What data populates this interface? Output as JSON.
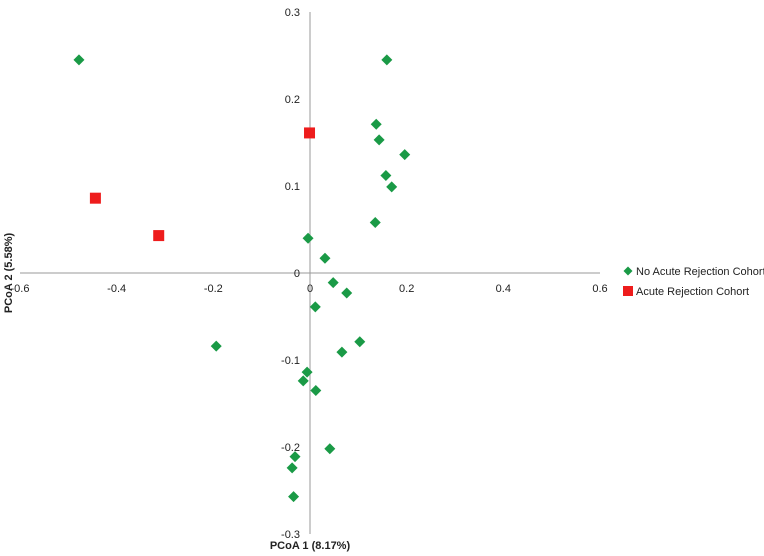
{
  "chart_data": {
    "type": "scatter",
    "title": "",
    "xlabel": "PCoA 1 (8.17%)",
    "ylabel": "PCoA 2 (5.58%)",
    "xlim": [
      -0.6,
      0.6
    ],
    "ylim": [
      -0.3,
      0.3
    ],
    "x_ticks": [
      "-0.6",
      "-0.4",
      "-0.2",
      "0",
      "0.2",
      "0.4",
      "0.6"
    ],
    "y_ticks": [
      "-0.3",
      "-0.2",
      "-0.1",
      "0",
      "0.1",
      "0.2",
      "0.3"
    ],
    "grid": false,
    "legend_position": "right",
    "series": [
      {
        "name": "No Acute Rejection Cohort",
        "marker": "diamond",
        "color": "#1a9a46",
        "points": [
          {
            "x": -0.478,
            "y": 0.245
          },
          {
            "x": 0.159,
            "y": 0.245
          },
          {
            "x": 0.137,
            "y": 0.171
          },
          {
            "x": 0.143,
            "y": 0.153
          },
          {
            "x": 0.196,
            "y": 0.136
          },
          {
            "x": 0.157,
            "y": 0.112
          },
          {
            "x": 0.169,
            "y": 0.099
          },
          {
            "x": 0.135,
            "y": 0.058
          },
          {
            "x": -0.004,
            "y": 0.04
          },
          {
            "x": 0.031,
            "y": 0.017
          },
          {
            "x": 0.048,
            "y": -0.011
          },
          {
            "x": 0.076,
            "y": -0.023
          },
          {
            "x": 0.011,
            "y": -0.039
          },
          {
            "x": -0.194,
            "y": -0.084
          },
          {
            "x": 0.103,
            "y": -0.079
          },
          {
            "x": 0.066,
            "y": -0.091
          },
          {
            "x": -0.006,
            "y": -0.114
          },
          {
            "x": -0.014,
            "y": -0.124
          },
          {
            "x": 0.012,
            "y": -0.135
          },
          {
            "x": 0.041,
            "y": -0.202
          },
          {
            "x": -0.031,
            "y": -0.211
          },
          {
            "x": -0.037,
            "y": -0.224
          },
          {
            "x": -0.034,
            "y": -0.257
          }
        ]
      },
      {
        "name": "Acute Rejection Cohort",
        "marker": "square",
        "color": "#ee1c1c",
        "points": [
          {
            "x": -0.001,
            "y": 0.161
          },
          {
            "x": -0.444,
            "y": 0.086
          },
          {
            "x": -0.313,
            "y": 0.043
          }
        ]
      }
    ]
  }
}
